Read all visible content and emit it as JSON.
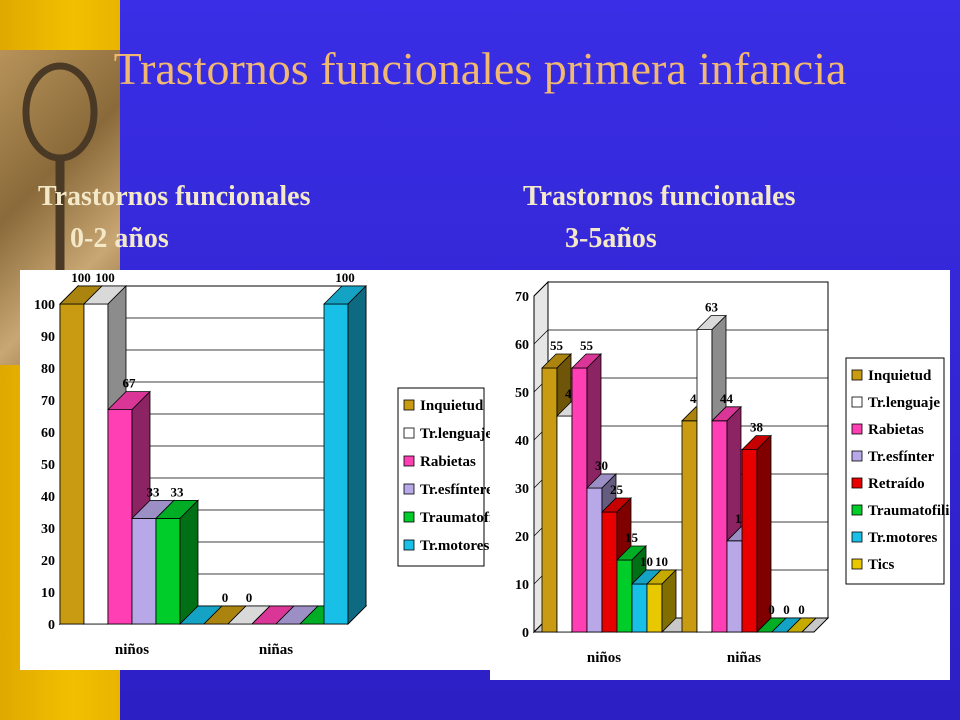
{
  "slide": {
    "title": "Trastornos funcionales primera infancia",
    "subtitle_left": [
      "Trastornos funcionales",
      "0-2 años"
    ],
    "subtitle_right": [
      "Trastornos funcionales",
      "3-5años"
    ]
  },
  "colors": {
    "background": "#3a2ee6",
    "side_band": "#f2c000",
    "title": "#f0b870",
    "subtitle": "#f3e8c8",
    "chart_bg": "#ffffff"
  },
  "chart_data": [
    {
      "type": "bar",
      "title": "",
      "xlabel": "",
      "ylabel": "",
      "ylim": [
        0,
        100
      ],
      "yticks": [
        0,
        10,
        20,
        30,
        40,
        50,
        60,
        70,
        80,
        90,
        100
      ],
      "categories": [
        "niños",
        "niñas"
      ],
      "grid": true,
      "legend_position": "right",
      "series": [
        {
          "name": "Inquietud",
          "color": "#c89b12",
          "values": [
            100,
            0
          ]
        },
        {
          "name": "Tr.lenguaje",
          "color": "#ffffff",
          "values": [
            100,
            0
          ]
        },
        {
          "name": "Rabietas",
          "color": "#ff3fb3",
          "values": [
            67,
            0
          ]
        },
        {
          "name": "Tr.esfínteres",
          "color": "#b8a8e8",
          "values": [
            33,
            0
          ]
        },
        {
          "name": "Traumatofilia",
          "color": "#00cc2a",
          "values": [
            33,
            0
          ]
        },
        {
          "name": "Tr.motores",
          "color": "#18c0e8",
          "values": [
            0,
            100
          ]
        }
      ],
      "data_labels": [
        [
          "100",
          "100",
          "67",
          "33",
          "33",
          ""
        ],
        [
          "0",
          "0",
          "",
          "",
          "",
          "100"
        ]
      ]
    },
    {
      "type": "bar",
      "title": "",
      "xlabel": "",
      "ylabel": "",
      "ylim": [
        0,
        70
      ],
      "yticks": [
        0,
        10,
        20,
        30,
        40,
        50,
        60,
        70
      ],
      "categories": [
        "niños",
        "niñas"
      ],
      "grid": true,
      "legend_position": "right",
      "series": [
        {
          "name": "Inquietud",
          "color": "#c89b12",
          "values": [
            55,
            44
          ]
        },
        {
          "name": "Tr.lenguaje",
          "color": "#ffffff",
          "values": [
            45,
            63
          ]
        },
        {
          "name": "Rabietas",
          "color": "#ff3fb3",
          "values": [
            55,
            44
          ]
        },
        {
          "name": "Tr.esfínter",
          "color": "#b8a8e8",
          "values": [
            30,
            19
          ]
        },
        {
          "name": "Retraído",
          "color": "#e80000",
          "values": [
            25,
            38
          ]
        },
        {
          "name": "Traumatofilia",
          "color": "#00cc2a",
          "values": [
            15,
            0
          ]
        },
        {
          "name": "Tr.motores",
          "color": "#18c0e8",
          "values": [
            10,
            0
          ]
        },
        {
          "name": "Tics",
          "color": "#e8c800",
          "values": [
            10,
            0
          ]
        }
      ],
      "data_labels": [
        [
          "55",
          "45",
          "55",
          "30",
          "25",
          "15",
          "10",
          "10"
        ],
        [
          "44",
          "63",
          "44",
          "19",
          "38",
          "0",
          "0",
          "0"
        ]
      ]
    }
  ]
}
